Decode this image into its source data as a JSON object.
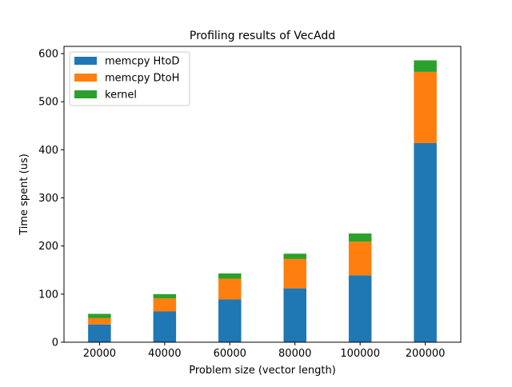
{
  "chart_data": {
    "type": "bar",
    "stacked": true,
    "title": "Profiling results of VecAdd",
    "xlabel": "Problem size (vector length)",
    "ylabel": "Time spent (us)",
    "categories": [
      "20000",
      "40000",
      "60000",
      "80000",
      "100000",
      "200000"
    ],
    "series": [
      {
        "name": "memcpy HtoD",
        "color": "#1f77b4",
        "values": [
          37,
          64,
          89,
          112,
          139,
          414
        ]
      },
      {
        "name": "memcpy DtoH",
        "color": "#ff7f0e",
        "values": [
          13,
          27,
          43,
          61,
          70,
          148
        ]
      },
      {
        "name": "kernel",
        "color": "#2ca02c",
        "values": [
          9,
          9,
          11,
          11,
          17,
          24
        ]
      }
    ],
    "ylim": [
      0,
      615
    ],
    "yticks": [
      0,
      100,
      200,
      300,
      400,
      500,
      600
    ],
    "grid": false,
    "legend_position": "upper-left"
  }
}
